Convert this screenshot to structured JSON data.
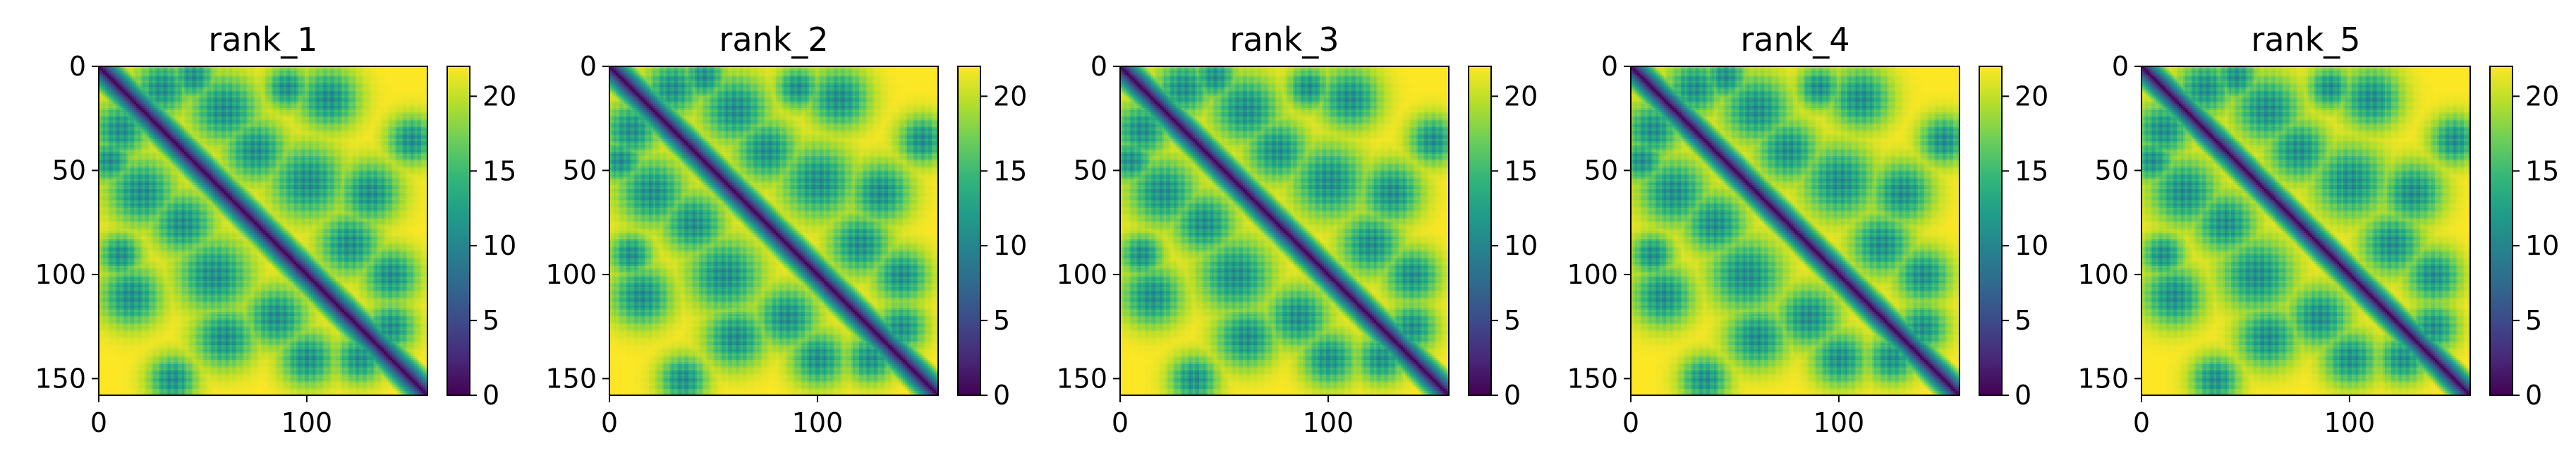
{
  "colors": {
    "colormap": "viridis",
    "viridis_low": "#440154",
    "viridis_mid": "#21918c",
    "viridis_high": "#fde725",
    "axis": "#000000",
    "background": "#ffffff"
  },
  "chart_data": [
    {
      "type": "heatmap",
      "title": "rank_1",
      "xlabel": "",
      "ylabel": "",
      "size": 158,
      "xlim": [
        0,
        158
      ],
      "ylim": [
        158,
        0
      ],
      "x_ticks": [
        "0",
        "100"
      ],
      "y_ticks": [
        "0",
        "50",
        "100",
        "150"
      ],
      "colorbar": {
        "range": [
          0,
          22
        ],
        "ticks": [
          "0",
          "5",
          "10",
          "15",
          "20"
        ]
      },
      "description_of_values": "pairwise distance map; near 0 on the diagonal, saturates near 22 away from contacts"
    },
    {
      "type": "heatmap",
      "title": "rank_2",
      "xlabel": "",
      "ylabel": "",
      "size": 158,
      "xlim": [
        0,
        158
      ],
      "ylim": [
        158,
        0
      ],
      "x_ticks": [
        "0",
        "100"
      ],
      "y_ticks": [
        "0",
        "50",
        "100",
        "150"
      ],
      "colorbar": {
        "range": [
          0,
          22
        ],
        "ticks": [
          "0",
          "5",
          "10",
          "15",
          "20"
        ]
      }
    },
    {
      "type": "heatmap",
      "title": "rank_3",
      "xlabel": "",
      "ylabel": "",
      "size": 158,
      "xlim": [
        0,
        158
      ],
      "ylim": [
        158,
        0
      ],
      "x_ticks": [
        "0",
        "100"
      ],
      "y_ticks": [
        "0",
        "50",
        "100",
        "150"
      ],
      "colorbar": {
        "range": [
          0,
          22
        ],
        "ticks": [
          "0",
          "5",
          "10",
          "15",
          "20"
        ]
      }
    },
    {
      "type": "heatmap",
      "title": "rank_4",
      "xlabel": "",
      "ylabel": "",
      "size": 158,
      "xlim": [
        0,
        158
      ],
      "ylim": [
        158,
        0
      ],
      "x_ticks": [
        "0",
        "100"
      ],
      "y_ticks": [
        "0",
        "50",
        "100",
        "150"
      ],
      "colorbar": {
        "range": [
          0,
          22
        ],
        "ticks": [
          "0",
          "5",
          "10",
          "15",
          "20"
        ]
      }
    },
    {
      "type": "heatmap",
      "title": "rank_5",
      "xlabel": "",
      "ylabel": "",
      "size": 158,
      "xlim": [
        0,
        158
      ],
      "ylim": [
        158,
        0
      ],
      "x_ticks": [
        "0",
        "100"
      ],
      "y_ticks": [
        "0",
        "50",
        "100",
        "150"
      ],
      "colorbar": {
        "range": [
          0,
          22
        ],
        "ticks": [
          "0",
          "5",
          "10",
          "15",
          "20"
        ]
      }
    }
  ]
}
